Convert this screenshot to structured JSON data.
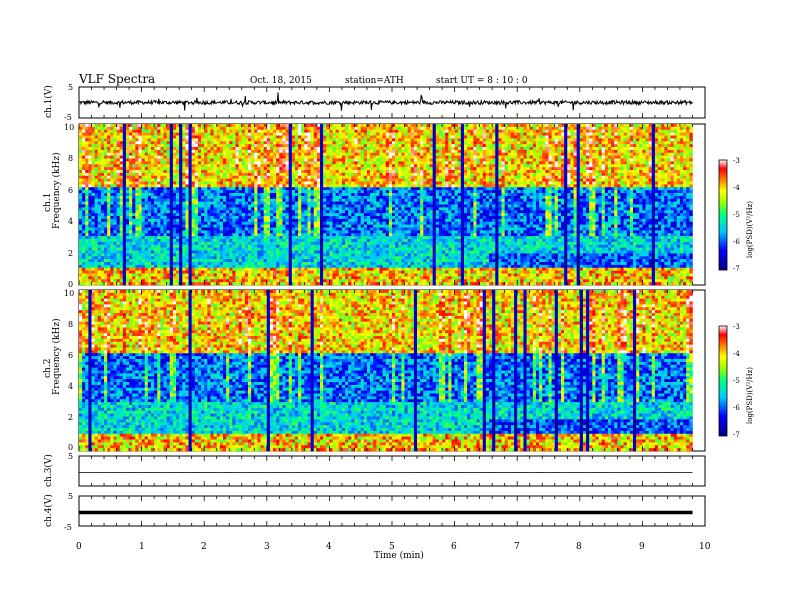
{
  "header": {
    "title": "VLF  Spectra",
    "date": "Oct. 18, 2015",
    "station": "station=ATH",
    "start": "start  UT =   8  : 10 : 0"
  },
  "chart_data": [
    {
      "type": "line",
      "id": "ch1-waveform",
      "ylabel": "ch.1(V)",
      "ylim": [
        -5,
        5
      ],
      "yticks": [
        "5",
        "-5"
      ],
      "xlim": [
        0,
        10
      ],
      "approx_level": 0.0,
      "approx_noise_band": [
        -1.0,
        1.0
      ]
    },
    {
      "type": "heatmap",
      "id": "ch1-spectrogram",
      "ylabel": "ch.1",
      "ylabel2": "Frequency  (kHz)",
      "ylim": [
        0,
        10
      ],
      "yticks": [
        "10",
        "8",
        "6",
        "4",
        "2",
        "0"
      ],
      "xlim": [
        0,
        9.8
      ],
      "colorbar": {
        "label": "log(PSD)(V²/Hz)",
        "ticks": [
          "-3",
          "-4",
          "-5",
          "-6",
          "-7"
        ],
        "range": [
          -7,
          -3
        ]
      }
    },
    {
      "type": "heatmap",
      "id": "ch2-spectrogram",
      "ylabel": "ch.2",
      "ylabel2": "Frequency  (kHz)",
      "ylim": [
        0,
        10
      ],
      "yticks": [
        "10",
        "8",
        "6",
        "4",
        "2",
        "0"
      ],
      "xlim": [
        0,
        9.8
      ],
      "colorbar": {
        "label": "log(PSD)(V²/Hz)",
        "ticks": [
          "-3",
          "-4",
          "-5",
          "-6",
          "-7"
        ],
        "range": [
          -7,
          -3
        ]
      }
    },
    {
      "type": "line",
      "id": "ch3-waveform",
      "ylabel": "ch.3(V)",
      "ylim": [
        -5,
        5
      ],
      "yticks": [
        "5"
      ],
      "xlim": [
        0,
        10
      ],
      "approx_level": -0.5
    },
    {
      "type": "line",
      "id": "ch4-waveform",
      "ylabel": "ch.4(V)",
      "ylim": [
        -5,
        5
      ],
      "yticks": [
        "5",
        "-5"
      ],
      "xlim": [
        0,
        10
      ],
      "approx_level": -0.5,
      "xlabel": "Time  (min)",
      "xticks": [
        "0",
        "1",
        "2",
        "3",
        "4",
        "5",
        "6",
        "7",
        "8",
        "9",
        "10"
      ]
    }
  ]
}
